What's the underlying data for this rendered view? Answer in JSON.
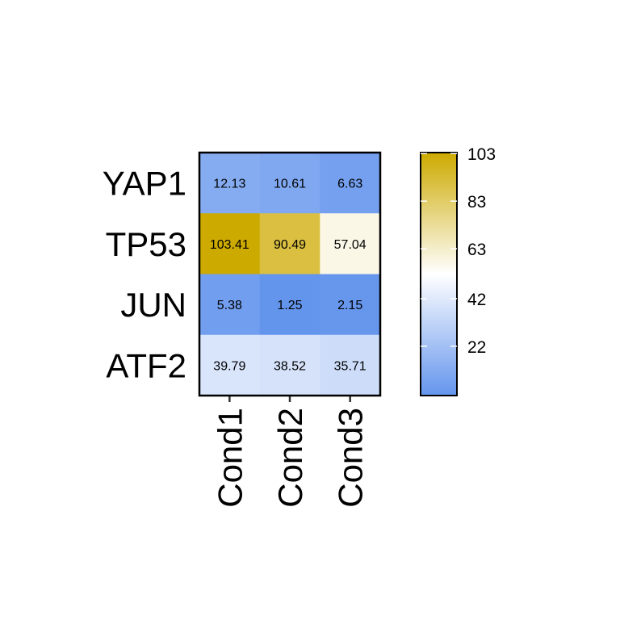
{
  "chart_data": {
    "type": "heatmap",
    "rows": [
      "YAP1",
      "TP53",
      "JUN",
      "ATF2"
    ],
    "columns": [
      "Cond1",
      "Cond2",
      "Cond3"
    ],
    "values": [
      [
        12.13,
        10.61,
        6.63
      ],
      [
        103.41,
        90.49,
        57.04
      ],
      [
        5.38,
        1.25,
        2.15
      ],
      [
        39.79,
        38.52,
        35.71
      ]
    ],
    "value_labels": [
      [
        "12.13",
        "10.61",
        "6.63"
      ],
      [
        "103.41",
        "90.49",
        "57.04"
      ],
      [
        "5.38",
        "1.25",
        "2.15"
      ],
      [
        "39.79",
        "38.52",
        "35.71"
      ]
    ],
    "color_scale": {
      "min": 1.25,
      "mid": 52.33,
      "max": 103.41,
      "low_color": "#6495ED",
      "mid_color": "#FFFFFF",
      "high_color": "#CDAA00",
      "ticks": [
        22,
        42,
        63,
        83,
        103
      ],
      "tick_labels": [
        "22",
        "42",
        "63",
        "83",
        "103"
      ]
    },
    "title": "",
    "xlabel": "",
    "ylabel": "",
    "legend": "right"
  }
}
